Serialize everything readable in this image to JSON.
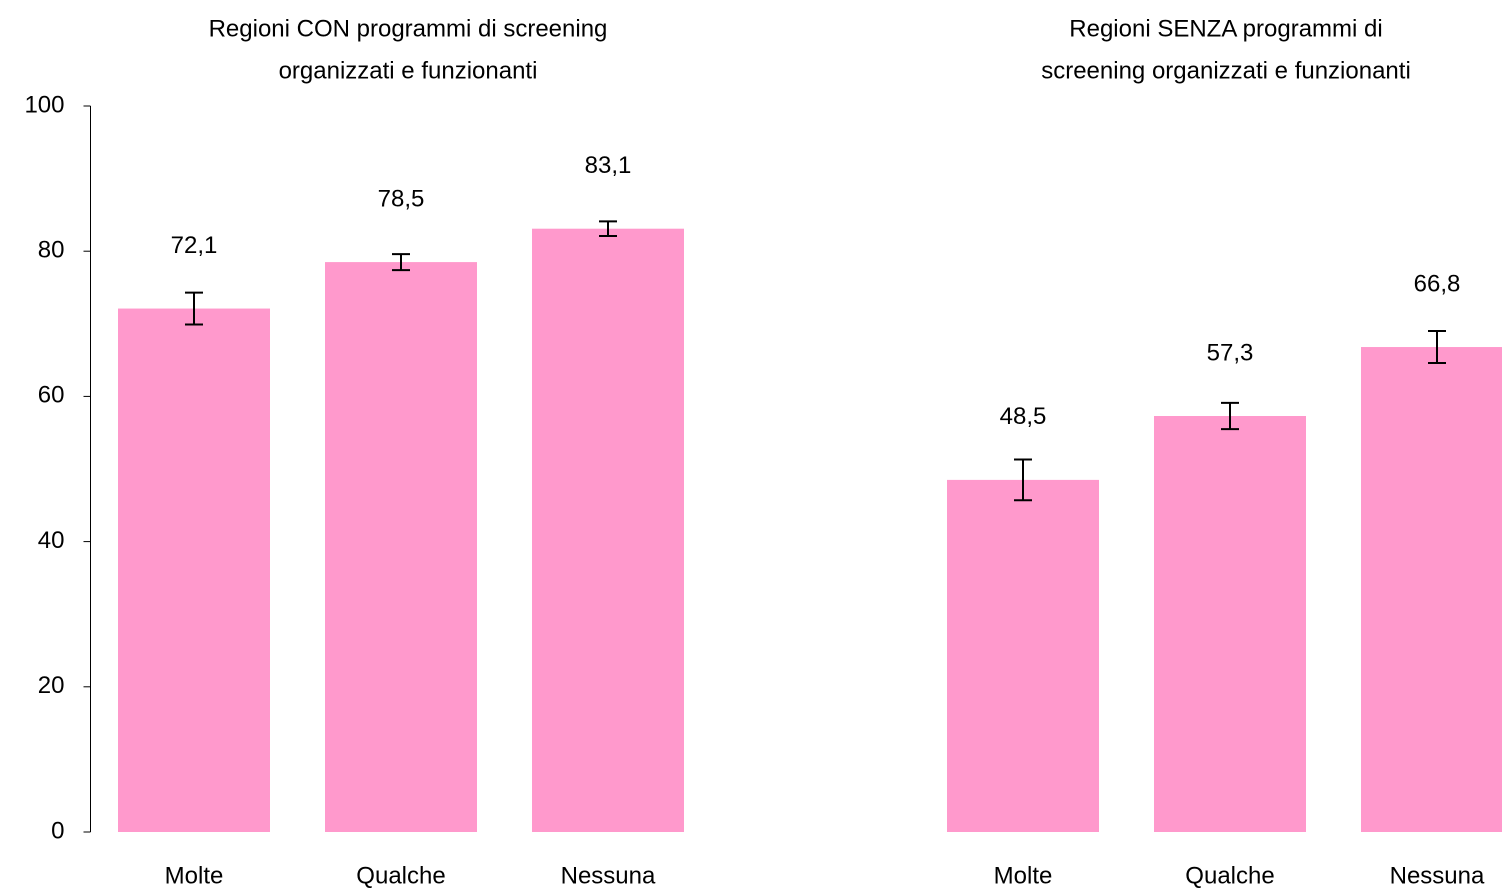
{
  "chart_data": [
    {
      "type": "bar",
      "title": [
        "Regioni CON programmi di screening",
        "organizzati e funzionanti"
      ],
      "categories": [
        "Molte",
        "Qualche",
        "Nessuna"
      ],
      "values": [
        72.1,
        78.5,
        83.1
      ],
      "value_labels": [
        "72,1",
        "78,5",
        "83,1"
      ],
      "errors": [
        2.2,
        1.1,
        1.0
      ],
      "color": "#ff99cc",
      "ylim": [
        0,
        100
      ],
      "yticks": [
        0,
        20,
        40,
        60,
        80,
        100
      ]
    },
    {
      "type": "bar",
      "title": [
        "Regioni SENZA programmi di",
        "screening organizzati e funzionanti"
      ],
      "categories": [
        "Molte",
        "Qualche",
        "Nessuna"
      ],
      "values": [
        48.5,
        57.3,
        66.8
      ],
      "value_labels": [
        "48,5",
        "57,3",
        "66,8"
      ],
      "errors": [
        2.8,
        1.8,
        2.2
      ],
      "color": "#ff99cc",
      "ylim": [
        0,
        100
      ]
    }
  ]
}
